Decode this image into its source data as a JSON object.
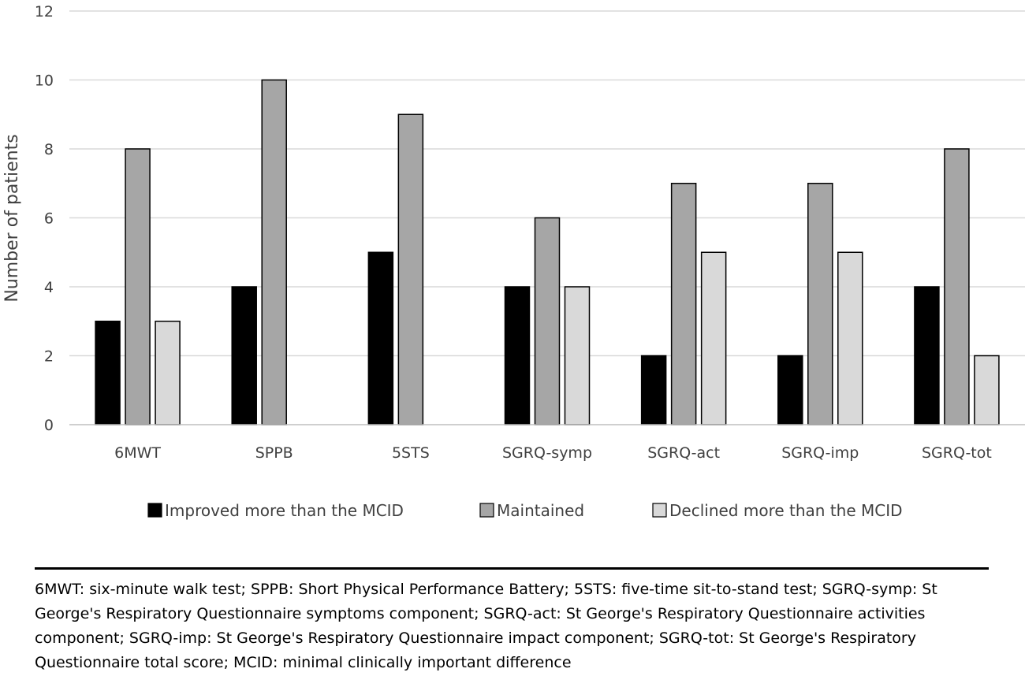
{
  "chart_data": {
    "type": "bar",
    "categories": [
      "6MWT",
      "SPPB",
      "5STS",
      "SGRQ-symp",
      "SGRQ-act",
      "SGRQ-imp",
      "SGRQ-tot"
    ],
    "series": [
      {
        "name": "Improved more than the MCID",
        "color": "#000000",
        "values": [
          3,
          4,
          5,
          4,
          2,
          2,
          4
        ]
      },
      {
        "name": "Maintained",
        "color": "#a6a6a6",
        "values": [
          8,
          10,
          9,
          6,
          7,
          7,
          8
        ]
      },
      {
        "name": "Declined more than the MCID",
        "color": "#d9d9d9",
        "values": [
          3,
          0,
          0,
          4,
          5,
          5,
          2
        ]
      }
    ],
    "ylabel": "Number of patients",
    "ylim": [
      0,
      12
    ],
    "yticks": [
      0,
      2,
      4,
      6,
      8,
      10,
      12
    ],
    "grid": true,
    "legend": "bottom"
  },
  "footnote": "6MWT: six-minute walk test; SPPB: Short Physical Performance Battery; 5STS: five-time sit-to-stand test; SGRQ-symp: St George's Respiratory Questionnaire symptoms component; SGRQ-act: St George's Respiratory Questionnaire activities component; SGRQ-imp: St George's Respiratory Questionnaire impact component; SGRQ-tot: St George's Respiratory Questionnaire total score; MCID: minimal clinically important difference"
}
